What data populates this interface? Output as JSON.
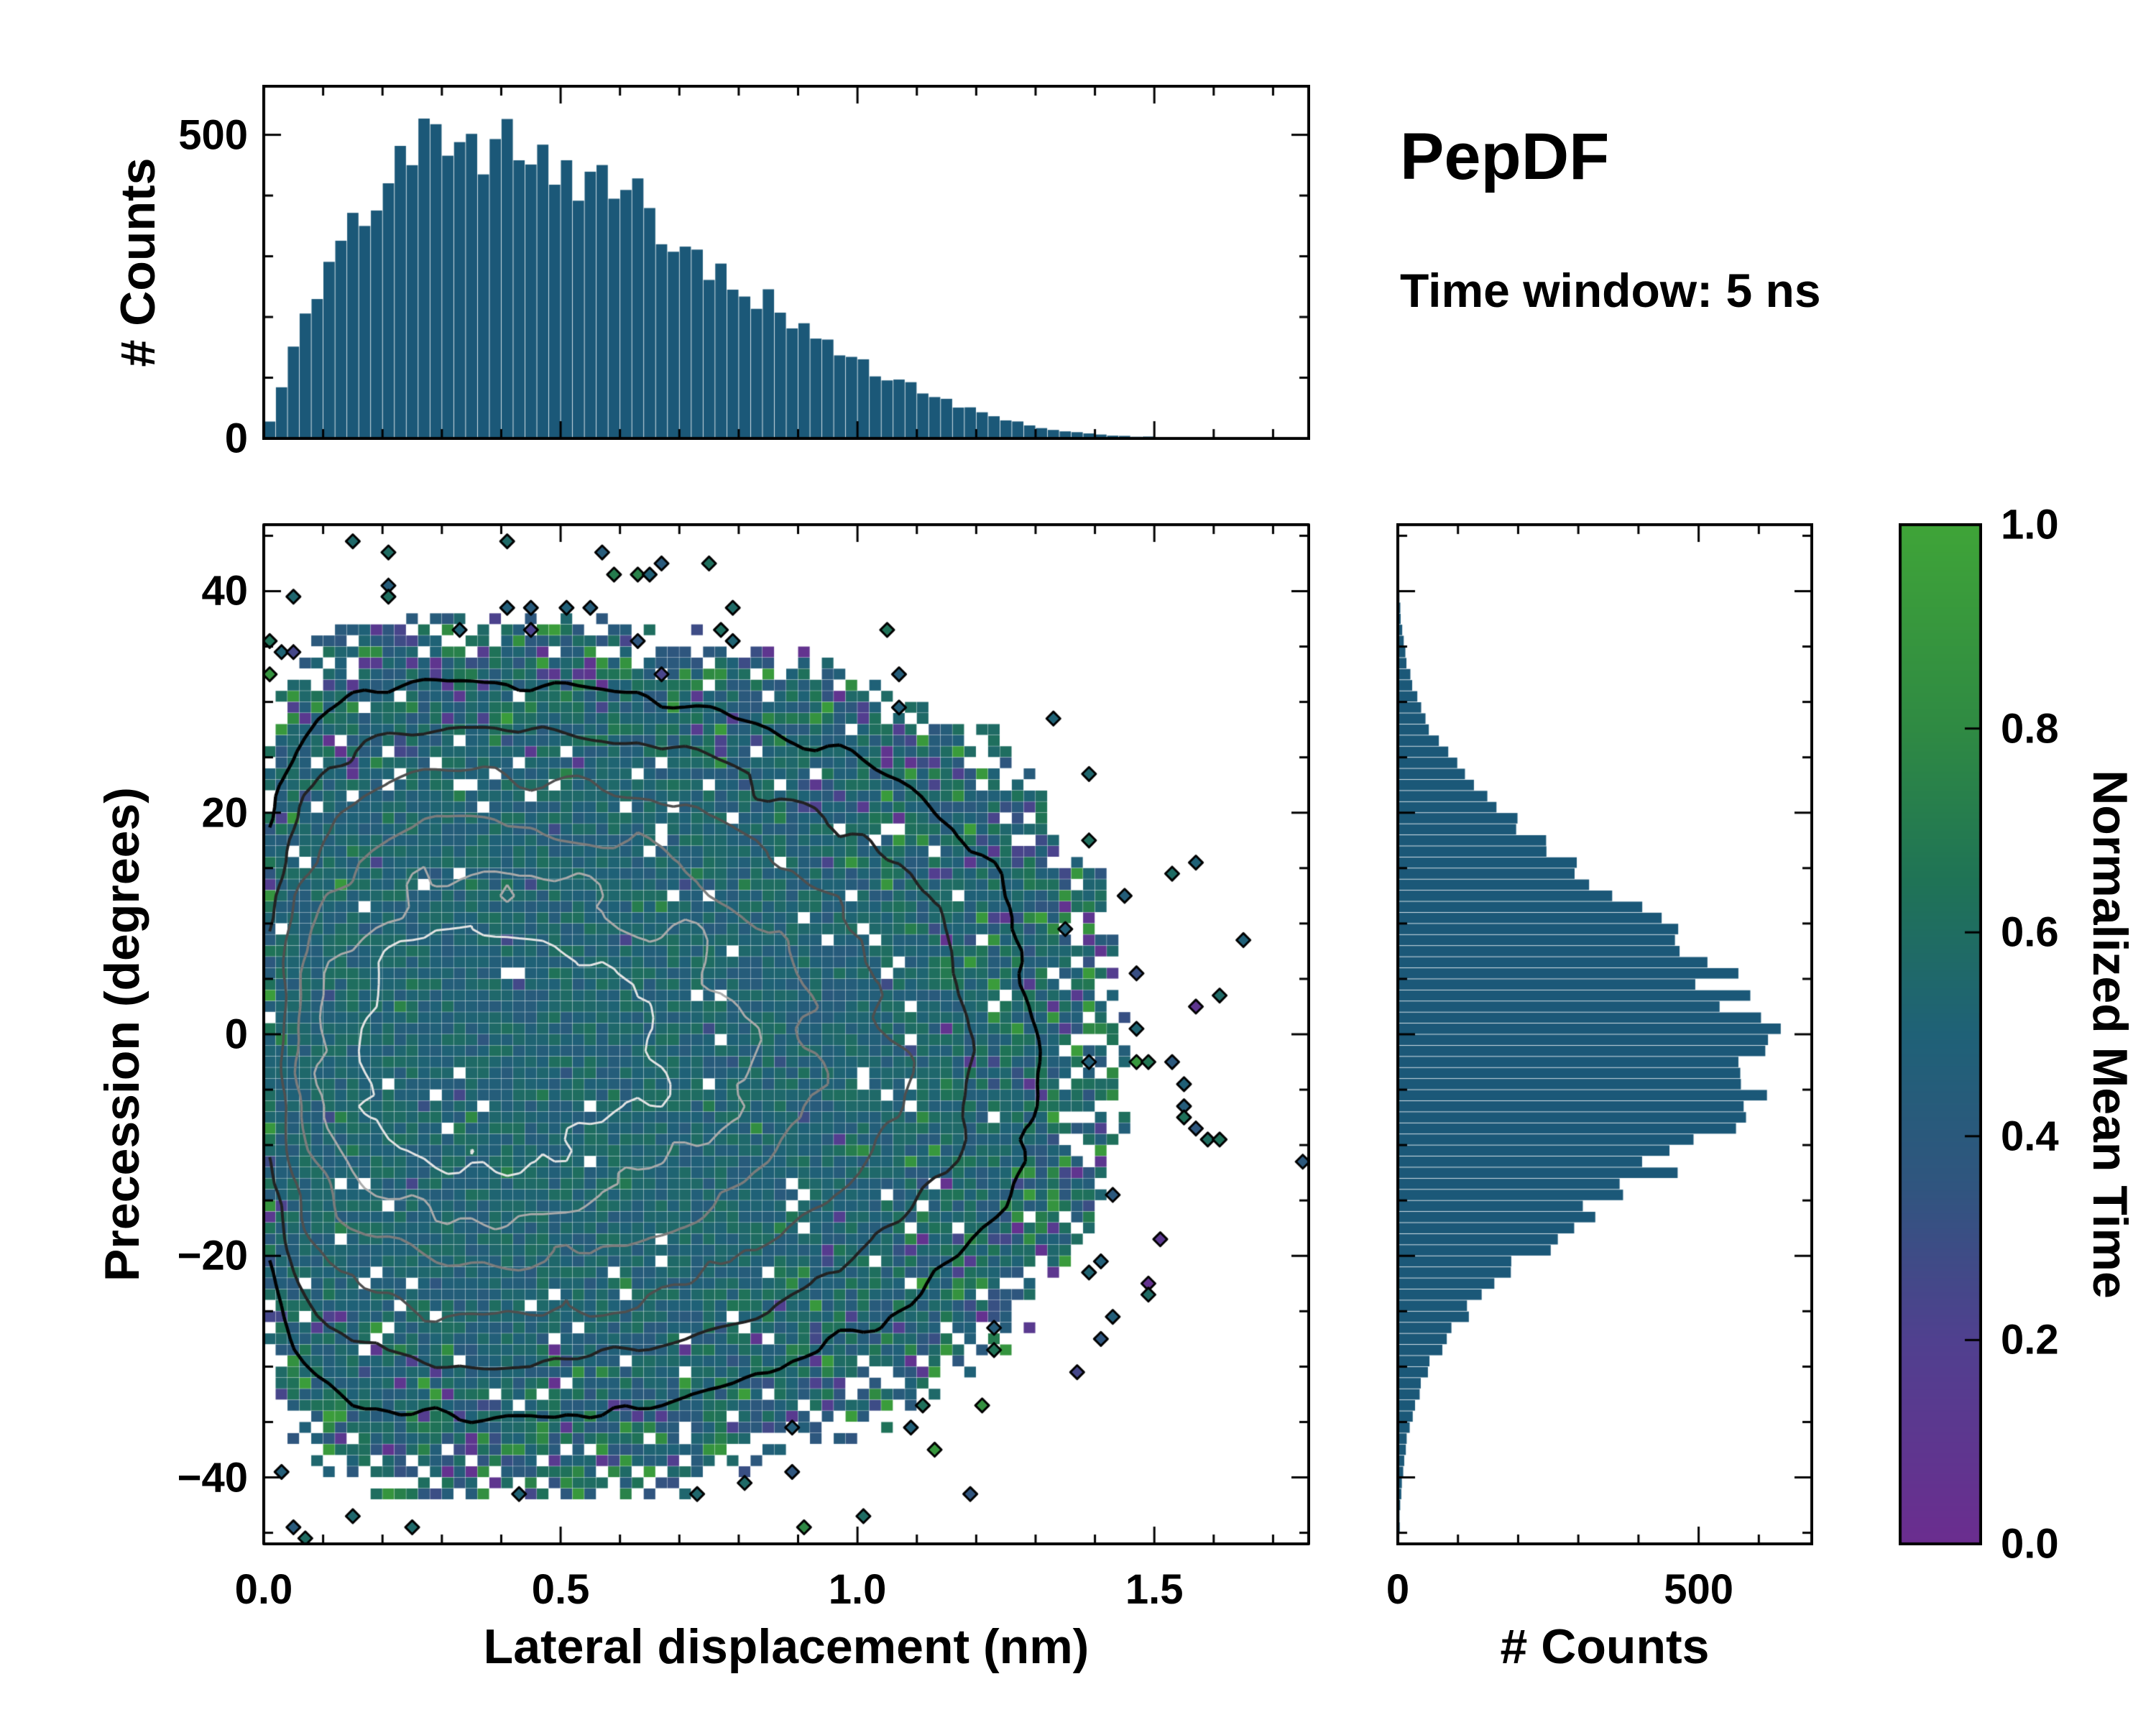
{
  "figure": {
    "title": "PepDF",
    "subtitle": "Time window: 5 ns",
    "background": "#ffffff"
  },
  "colors": {
    "histogram_fill": "#1b5878",
    "axis": "#000000"
  },
  "colorbar": {
    "label": "Normalized Mean Time",
    "tick_values": [
      0,
      0.2,
      0.4,
      0.6,
      0.8,
      1.0
    ],
    "tick_labels": [
      "0.0",
      "0.2",
      "0.4",
      "0.6",
      "0.8",
      "1.0"
    ],
    "range": [
      0,
      1
    ],
    "stops": [
      [
        0.0,
        "#6b2d8f"
      ],
      [
        0.2,
        "#50408f"
      ],
      [
        0.35,
        "#30557f"
      ],
      [
        0.5,
        "#1f6177"
      ],
      [
        0.65,
        "#1f7356"
      ],
      [
        0.8,
        "#2f8a43"
      ],
      [
        1.0,
        "#3fa438"
      ]
    ]
  },
  "chart_data": {
    "type": "joint-2d-histogram",
    "title": "PepDF",
    "annotation": "Time window: 5 ns",
    "top_histogram": {
      "type": "bar",
      "ylabel": "# Counts",
      "x_range": [
        0,
        1.76
      ],
      "y_range": [
        0,
        580
      ],
      "ytick_values": [
        0,
        500
      ],
      "ytick_labels": [
        "0",
        "500"
      ],
      "bin_start": 0,
      "bin_width": 0.02,
      "values": [
        30,
        80,
        150,
        200,
        235,
        280,
        320,
        340,
        370,
        410,
        430,
        455,
        460,
        490,
        520,
        505,
        535,
        510,
        480,
        525,
        500,
        480,
        495,
        470,
        460,
        450,
        430,
        445,
        420,
        400,
        390,
        395,
        370,
        350,
        330,
        340,
        310,
        290,
        280,
        265,
        250,
        235,
        225,
        210,
        195,
        180,
        170,
        155,
        145,
        135,
        120,
        110,
        100,
        95,
        85,
        75,
        70,
        62,
        55,
        48,
        42,
        36,
        30,
        26,
        22,
        18,
        15,
        12,
        10,
        8,
        7,
        5,
        4,
        3,
        3,
        2,
        2,
        1,
        1,
        1,
        1,
        0,
        1,
        0,
        0,
        0,
        0,
        1
      ]
    },
    "joint_heatmap": {
      "type": "heatmap",
      "xlabel": "Lateral displacement (nm)",
      "ylabel": "Precession (degrees)",
      "x_range": [
        0,
        1.76
      ],
      "y_range": [
        -46,
        46
      ],
      "xtick_values": [
        0,
        0.5,
        1.0,
        1.5
      ],
      "xtick_labels": [
        "0.0",
        "0.5",
        "1.0",
        "1.5"
      ],
      "ytick_values": [
        -40,
        -20,
        0,
        20,
        40
      ],
      "ytick_labels": [
        "−40",
        "−20",
        "0",
        "20",
        "40"
      ],
      "x_bins": 88,
      "y_bins": 92,
      "color_label": "Normalized Mean Time",
      "color_range": [
        0,
        1
      ],
      "density_model": "product of marginal histograms; teal-blue core (mean time ~0.5) with purple/green outlier cells at low-density edges",
      "contour_level_fractions": [
        0.035,
        0.085,
        0.17,
        0.3,
        0.47,
        0.66
      ],
      "contour_colors": [
        "#000000",
        "#222222",
        "#4f4f4f",
        "#7c7c7c",
        "#aaaaaa",
        "#e4e4e4"
      ],
      "seed": 42
    },
    "right_histogram": {
      "type": "bar-horizontal",
      "xlabel": "# Counts",
      "x_range": [
        0,
        688
      ],
      "xtick_values": [
        0,
        500
      ],
      "xtick_labels": [
        "0",
        "500"
      ],
      "bin_start": -46,
      "bin_width": 1,
      "values": [
        2,
        3,
        3,
        4,
        6,
        7,
        9,
        11,
        14,
        16,
        21,
        24,
        28,
        35,
        40,
        50,
        57,
        68,
        84,
        95,
        112,
        125,
        140,
        162,
        180,
        205,
        236,
        250,
        285,
        305,
        330,
        370,
        385,
        425,
        440,
        470,
        505,
        515,
        545,
        560,
        580,
        570,
        600,
        620,
        590,
        610,
        585,
        560,
        575,
        550,
        545,
        520,
        505,
        480,
        455,
        430,
        400,
        385,
        350,
        330,
        300,
        280,
        250,
        230,
        200,
        185,
        160,
        140,
        120,
        108,
        92,
        80,
        66,
        56,
        46,
        38,
        30,
        24,
        19,
        15,
        12,
        9,
        7,
        5,
        4,
        3,
        2,
        2,
        1,
        1,
        1,
        1
      ]
    }
  }
}
